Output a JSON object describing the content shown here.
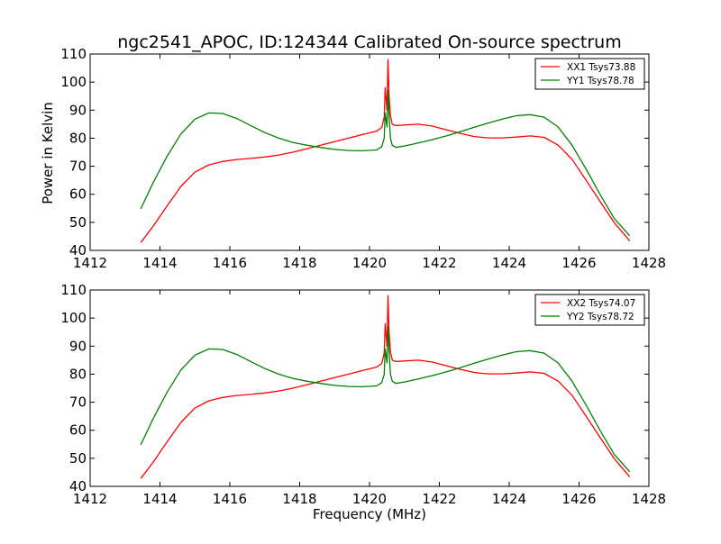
{
  "chart_data": {
    "title": "ngc2541_APOC, ID:124344 Calibrated On-source spectrum",
    "xlabel": "Frequency (MHz)",
    "ylabel": "Power in Kelvin",
    "panels": [
      {
        "type": "line",
        "xlim": [
          1412,
          1428
        ],
        "ylim": [
          40,
          110
        ],
        "xticks": [
          "1412",
          "1414",
          "1416",
          "1418",
          "1420",
          "1422",
          "1424",
          "1426",
          "1428"
        ],
        "yticks": [
          "40",
          "50",
          "60",
          "70",
          "80",
          "90",
          "100",
          "110"
        ],
        "legend_position": "top-right",
        "series": [
          {
            "name": "XX1 Tsys73.88",
            "color": "#ff0000",
            "x": [
              1413.45,
              1413.8,
              1414.2,
              1414.6,
              1415.0,
              1415.4,
              1415.8,
              1416.2,
              1416.6,
              1417.0,
              1417.4,
              1417.8,
              1418.2,
              1418.6,
              1419.0,
              1419.4,
              1419.8,
              1420.2,
              1420.35,
              1420.42,
              1420.45,
              1420.5,
              1420.53,
              1420.56,
              1420.6,
              1420.65,
              1420.75,
              1421.0,
              1421.4,
              1421.8,
              1422.2,
              1422.6,
              1423.0,
              1423.4,
              1423.8,
              1424.2,
              1424.6,
              1425.0,
              1425.4,
              1425.8,
              1426.2,
              1426.6,
              1427.0,
              1427.45
            ],
            "y": [
              42.8,
              48.5,
              55.8,
              62.8,
              67.9,
              70.5,
              71.7,
              72.4,
              72.8,
              73.3,
              74.0,
              75.0,
              76.2,
              77.5,
              78.8,
              80.0,
              81.3,
              82.5,
              83.8,
              87.5,
              98.0,
              90.0,
              108.0,
              95.0,
              88.0,
              85.0,
              84.5,
              84.7,
              85.0,
              84.3,
              83.0,
              81.7,
              80.6,
              80.1,
              80.1,
              80.4,
              80.8,
              80.3,
              77.5,
              72.5,
              65.0,
              57.5,
              50.0,
              43.4
            ]
          },
          {
            "name": "YY1 Tsys78.78",
            "color": "#008000",
            "x": [
              1413.45,
              1413.8,
              1414.2,
              1414.6,
              1415.0,
              1415.4,
              1415.8,
              1416.2,
              1416.6,
              1417.0,
              1417.4,
              1417.8,
              1418.2,
              1418.6,
              1419.0,
              1419.4,
              1419.8,
              1420.2,
              1420.35,
              1420.42,
              1420.45,
              1420.5,
              1420.53,
              1420.56,
              1420.6,
              1420.65,
              1420.75,
              1421.0,
              1421.4,
              1421.8,
              1422.2,
              1422.6,
              1423.0,
              1423.4,
              1423.8,
              1424.2,
              1424.6,
              1425.0,
              1425.4,
              1425.8,
              1426.2,
              1426.6,
              1427.0,
              1427.45
            ],
            "y": [
              54.8,
              64.0,
              73.5,
              81.5,
              86.8,
              89.0,
              88.8,
              87.0,
              84.5,
              82.0,
              80.0,
              78.5,
              77.5,
              76.7,
              76.0,
              75.6,
              75.5,
              75.8,
              77.0,
              80.0,
              89.0,
              84.0,
              97.0,
              88.0,
              80.0,
              77.5,
              76.7,
              77.2,
              78.3,
              79.5,
              80.8,
              82.3,
              83.9,
              85.4,
              86.8,
              88.0,
              88.4,
              87.5,
              84.0,
              77.5,
              69.0,
              60.0,
              51.5,
              45.2
            ]
          }
        ]
      },
      {
        "type": "line",
        "xlim": [
          1412,
          1428
        ],
        "ylim": [
          40,
          110
        ],
        "xticks": [
          "1412",
          "1414",
          "1416",
          "1418",
          "1420",
          "1422",
          "1424",
          "1426",
          "1428"
        ],
        "yticks": [
          "40",
          "50",
          "60",
          "70",
          "80",
          "90",
          "100",
          "110"
        ],
        "legend_position": "top-right",
        "series": [
          {
            "name": "XX2 Tsys74.07",
            "color": "#ff0000",
            "x": [
              1413.45,
              1413.8,
              1414.2,
              1414.6,
              1415.0,
              1415.4,
              1415.8,
              1416.2,
              1416.6,
              1417.0,
              1417.4,
              1417.8,
              1418.2,
              1418.6,
              1419.0,
              1419.4,
              1419.8,
              1420.2,
              1420.35,
              1420.42,
              1420.45,
              1420.5,
              1420.53,
              1420.56,
              1420.6,
              1420.65,
              1420.75,
              1421.0,
              1421.4,
              1421.8,
              1422.2,
              1422.6,
              1423.0,
              1423.4,
              1423.8,
              1424.2,
              1424.6,
              1425.0,
              1425.4,
              1425.8,
              1426.2,
              1426.6,
              1427.0,
              1427.45
            ],
            "y": [
              42.8,
              48.5,
              55.8,
              62.8,
              67.9,
              70.5,
              71.7,
              72.4,
              72.8,
              73.3,
              74.0,
              75.0,
              76.2,
              77.5,
              78.8,
              80.0,
              81.3,
              82.5,
              83.8,
              87.5,
              98.0,
              90.0,
              108.0,
              95.0,
              88.0,
              85.0,
              84.5,
              84.7,
              85.0,
              84.3,
              83.0,
              81.7,
              80.6,
              80.1,
              80.1,
              80.4,
              80.8,
              80.3,
              77.5,
              72.5,
              65.0,
              57.5,
              50.0,
              43.4
            ]
          },
          {
            "name": "YY2 Tsys78.72",
            "color": "#008000",
            "x": [
              1413.45,
              1413.8,
              1414.2,
              1414.6,
              1415.0,
              1415.4,
              1415.8,
              1416.2,
              1416.6,
              1417.0,
              1417.4,
              1417.8,
              1418.2,
              1418.6,
              1419.0,
              1419.4,
              1419.8,
              1420.2,
              1420.35,
              1420.42,
              1420.45,
              1420.5,
              1420.53,
              1420.56,
              1420.6,
              1420.65,
              1420.75,
              1421.0,
              1421.4,
              1421.8,
              1422.2,
              1422.6,
              1423.0,
              1423.4,
              1423.8,
              1424.2,
              1424.6,
              1425.0,
              1425.4,
              1425.8,
              1426.2,
              1426.6,
              1427.0,
              1427.45
            ],
            "y": [
              54.8,
              64.0,
              73.5,
              81.5,
              86.8,
              89.0,
              88.8,
              87.0,
              84.5,
              82.0,
              80.0,
              78.5,
              77.5,
              76.7,
              76.0,
              75.6,
              75.5,
              75.8,
              77.0,
              80.0,
              89.0,
              84.0,
              97.0,
              88.0,
              80.0,
              77.5,
              76.7,
              77.2,
              78.3,
              79.5,
              80.8,
              82.3,
              83.9,
              85.4,
              86.8,
              88.0,
              88.4,
              87.5,
              84.0,
              77.5,
              69.0,
              60.0,
              51.5,
              45.2
            ]
          }
        ]
      }
    ]
  }
}
